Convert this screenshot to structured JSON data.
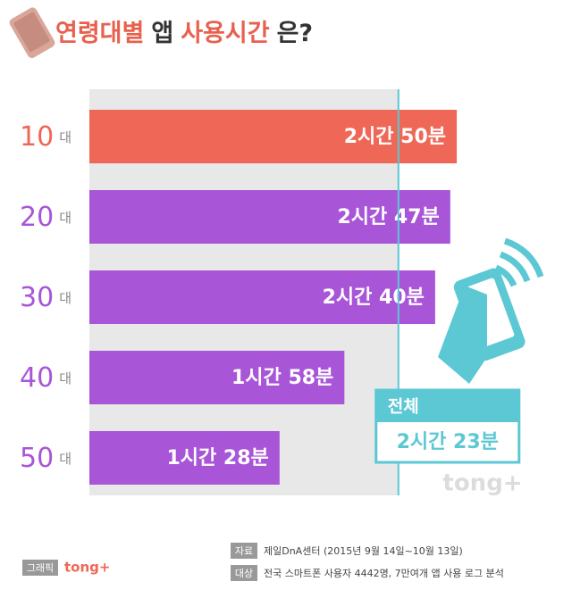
{
  "chart_data": {
    "type": "hbar",
    "title_parts": [
      {
        "text": "연령대별",
        "color": "#e8604e"
      },
      {
        "text": "앱",
        "color": "#333333"
      },
      {
        "text": "사용시간",
        "color": "#e8604e"
      },
      {
        "text": "은?",
        "color": "#333333"
      }
    ],
    "categories": [
      {
        "number": "10",
        "unit": "대"
      },
      {
        "number": "20",
        "unit": "대"
      },
      {
        "number": "30",
        "unit": "대"
      },
      {
        "number": "40",
        "unit": "대"
      },
      {
        "number": "50",
        "unit": "대"
      }
    ],
    "values": [
      170,
      167,
      160,
      118,
      88
    ],
    "value_labels": [
      "2시간 50분",
      "2시간 47분",
      "2시간 40분",
      "1시간 58분",
      "1시간 28분"
    ],
    "colors": [
      "#ef6756",
      "#a855d8",
      "#a855d8",
      "#a855d8",
      "#a855d8"
    ],
    "overall": {
      "label": "전체",
      "value": 143,
      "value_label": "2시간 23분",
      "color": "#5bc8d4"
    }
  },
  "footer": {
    "source_tag": "자료",
    "source": "제일DnA센터 (2015년 9월 14일~10월 13일)",
    "target_tag": "대상",
    "target": "전국 스마트폰 사용자 4442명, 7만여개 앱 사용 로그 분석",
    "graphic_tag": "그래픽",
    "brand": "tong+"
  }
}
